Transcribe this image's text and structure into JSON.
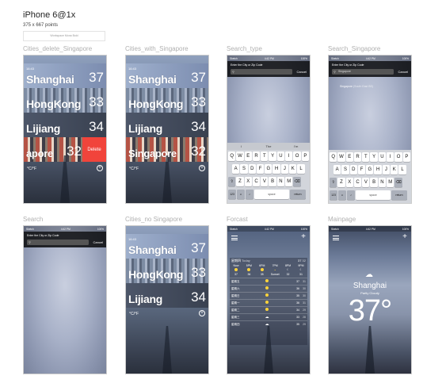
{
  "header": {
    "title": "iPhone 6@1x",
    "subtitle": "375 x 667 points",
    "note": "Workspace Mona Bold"
  },
  "screens": {
    "cities_delete": {
      "label": "Cities_delete_Singapore",
      "rows": [
        {
          "time": "16:43",
          "city": "Shanghai",
          "temp": "37"
        },
        {
          "time": "",
          "city": "HongKong",
          "temp": "33"
        },
        {
          "time": "",
          "city": "Lijiang",
          "temp": "34"
        },
        {
          "time": "",
          "city": "apore",
          "temp": "32"
        }
      ],
      "delete_label": "Delete",
      "unit_toggle": "°C/°F"
    },
    "cities_with": {
      "label": "Cities_with_Singapore",
      "rows": [
        {
          "time": "16:43",
          "city": "Shanghai",
          "temp": "37"
        },
        {
          "time": "",
          "city": "HongKong",
          "temp": "33"
        },
        {
          "time": "",
          "city": "Lijiang",
          "temp": "34"
        },
        {
          "time": "",
          "city": "Singapore",
          "temp": "32"
        }
      ],
      "unit_toggle": "°C/°F"
    },
    "search_type": {
      "label": "Search_type",
      "status": {
        "carrier": "Sketch",
        "time": "4:42 PM",
        "battery": "100%"
      },
      "prompt": "Enter the City or Zip Code",
      "cancel": "Cancel",
      "suggestions": [
        "I",
        "The",
        "I'm"
      ],
      "keys_row1": [
        "Q",
        "W",
        "E",
        "R",
        "T",
        "Y",
        "U",
        "I",
        "O",
        "P"
      ],
      "keys_row2": [
        "A",
        "S",
        "D",
        "F",
        "G",
        "H",
        "J",
        "K",
        "L"
      ],
      "keys_row3": [
        "Z",
        "X",
        "C",
        "V",
        "B",
        "N",
        "M"
      ],
      "key_num": "123",
      "key_space": "space",
      "key_return": "return"
    },
    "search_singapore": {
      "label": "Search_Singapore",
      "status": {
        "carrier": "Sketch",
        "time": "4:42 PM",
        "battery": "100%"
      },
      "prompt": "Enter the City or Zip Code",
      "field_value": "Singapore",
      "cancel": "Cancel",
      "suggestion": "Singapore",
      "suggestion_detail": "(South East BS)",
      "keys_row1": [
        "Q",
        "W",
        "E",
        "R",
        "T",
        "Y",
        "U",
        "I",
        "O",
        "P"
      ],
      "keys_row2": [
        "A",
        "S",
        "D",
        "F",
        "G",
        "H",
        "J",
        "K",
        "L"
      ],
      "keys_row3": [
        "Z",
        "X",
        "C",
        "V",
        "B",
        "N",
        "M"
      ],
      "key_num": "123",
      "key_space": "space",
      "key_return": "return"
    },
    "search": {
      "label": "Search",
      "status": {
        "carrier": "Sketch",
        "time": "4:42 PM",
        "battery": "100%"
      },
      "prompt": "Enter the City or Zip Code",
      "cancel": "Cancel"
    },
    "cities_no": {
      "label": "Cities_no Singapore",
      "rows": [
        {
          "time": "16:43",
          "city": "Shanghai",
          "temp": "37"
        },
        {
          "time": "",
          "city": "HongKong",
          "temp": "33"
        },
        {
          "time": "",
          "city": "Lijiang",
          "temp": "34"
        }
      ],
      "unit_toggle": "°C/°F"
    },
    "forcast": {
      "label": "Forcast",
      "status": {
        "carrier": "Sketch",
        "time": "4:42 PM",
        "battery": "100%"
      },
      "today": "星期四",
      "today_tag": "Today",
      "today_hi": "37",
      "today_lo": "32",
      "hours": [
        "Now",
        "5PM",
        "6PM",
        "7PM",
        "8PM",
        "9PM"
      ],
      "hour_temps": [
        "37",
        "36",
        "35",
        "Sunset",
        "32",
        "31"
      ],
      "days": [
        {
          "name": "星期五",
          "hi": "37",
          "lo": "31"
        },
        {
          "name": "星期六",
          "hi": "36",
          "lo": "30"
        },
        {
          "name": "星期日",
          "hi": "35",
          "lo": "30"
        },
        {
          "name": "星期一",
          "hi": "36",
          "lo": "31"
        },
        {
          "name": "星期二",
          "hi": "34",
          "lo": "29"
        },
        {
          "name": "星期三",
          "hi": "33",
          "lo": "28"
        },
        {
          "name": "星期四",
          "hi": "35",
          "lo": "29"
        }
      ]
    },
    "mainpage": {
      "label": "Mainpage",
      "status": {
        "carrier": "Sketch",
        "time": "4:42 PM",
        "battery": "100%"
      },
      "city": "Shanghai",
      "condition": "Partly Cloudy",
      "temp": "37°"
    }
  }
}
